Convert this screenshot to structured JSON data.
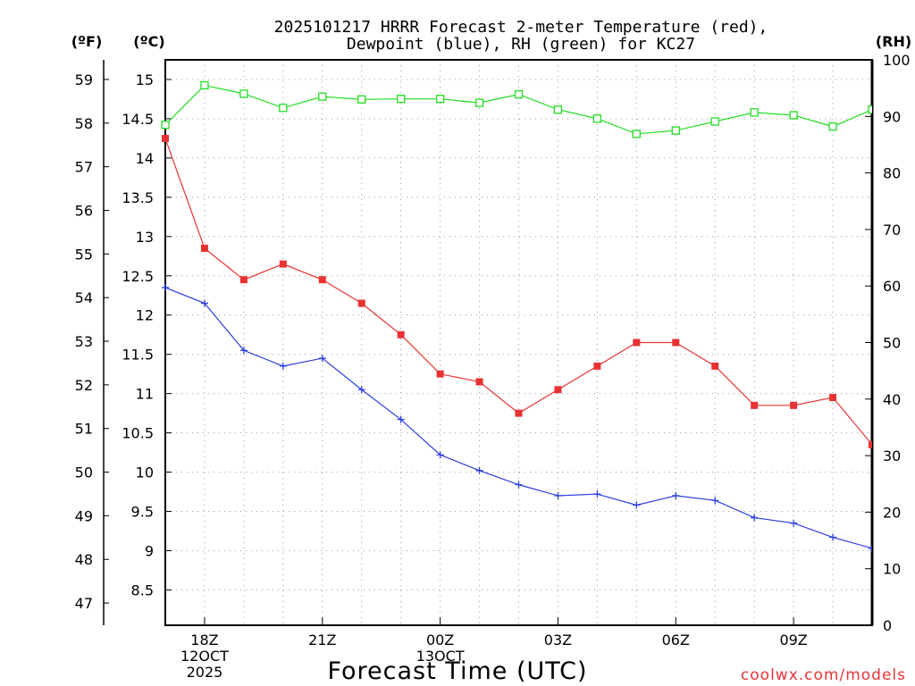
{
  "chart_data": {
    "type": "line",
    "title_line1": "2025101217 HRRR Forecast 2-meter Temperature (red),",
    "title_line2": "Dewpoint (blue), RH (green) for KC27",
    "xlabel": "Forecast Time (UTC)",
    "watermark": "coolwx.com/models",
    "x_hours": [
      0,
      1,
      2,
      3,
      4,
      5,
      6,
      7,
      8,
      9,
      10,
      11,
      12,
      13,
      14,
      15,
      16,
      17,
      18
    ],
    "x_range": [
      0,
      18
    ],
    "x_ticks": [
      {
        "hour": 1,
        "lines": [
          "18Z",
          "12OCT",
          "2025"
        ]
      },
      {
        "hour": 4,
        "lines": [
          "21Z"
        ]
      },
      {
        "hour": 7,
        "lines": [
          "00Z",
          "13OCT"
        ]
      },
      {
        "hour": 10,
        "lines": [
          "03Z"
        ]
      },
      {
        "hour": 13,
        "lines": [
          "06Z"
        ]
      },
      {
        "hour": 16,
        "lines": [
          "09Z"
        ]
      }
    ],
    "axes": {
      "celsius": {
        "label": "(ºC)",
        "range": [
          8.05,
          15.25
        ],
        "ticks": [
          "8.5",
          "9",
          "9.5",
          "10",
          "10.5",
          "11",
          "11.5",
          "12",
          "12.5",
          "13",
          "13.5",
          "14",
          "14.5",
          "15"
        ]
      },
      "fahrenheit": {
        "label": "(ºF)",
        "range": [
          46.49,
          59.45
        ],
        "ticks": [
          "47",
          "48",
          "49",
          "50",
          "51",
          "52",
          "53",
          "54",
          "55",
          "56",
          "57",
          "58",
          "59"
        ]
      },
      "rh": {
        "label": "(RH)",
        "range": [
          0,
          100
        ],
        "ticks": [
          "0",
          "10",
          "20",
          "30",
          "40",
          "50",
          "60",
          "70",
          "80",
          "90",
          "100"
        ]
      }
    },
    "series": [
      {
        "name": "Temperature",
        "unit": "C",
        "axis": "celsius",
        "color": "#e83232",
        "marker": "square-filled",
        "values": [
          14.25,
          12.85,
          12.45,
          12.65,
          12.45,
          12.15,
          11.75,
          11.25,
          11.15,
          10.75,
          11.05,
          11.35,
          11.65,
          11.65,
          11.35,
          10.85,
          10.85,
          10.95,
          10.35
        ]
      },
      {
        "name": "Dewpoint",
        "unit": "C",
        "axis": "celsius",
        "color": "#2a3ee0",
        "marker": "plus",
        "values": [
          12.35,
          12.15,
          11.55,
          11.35,
          11.45,
          11.05,
          10.67,
          10.22,
          10.02,
          9.84,
          9.7,
          9.72,
          9.58,
          9.7,
          9.64,
          9.42,
          9.35,
          9.17,
          9.03
        ]
      },
      {
        "name": "RH",
        "unit": "%",
        "axis": "rh",
        "color": "#22dd22",
        "marker": "square-open",
        "values": [
          88.5,
          95.5,
          94.0,
          91.5,
          93.5,
          93.0,
          93.1,
          93.1,
          92.4,
          93.9,
          91.2,
          89.6,
          86.9,
          87.5,
          89.1,
          90.7,
          90.2,
          88.2,
          91.2
        ]
      }
    ]
  }
}
